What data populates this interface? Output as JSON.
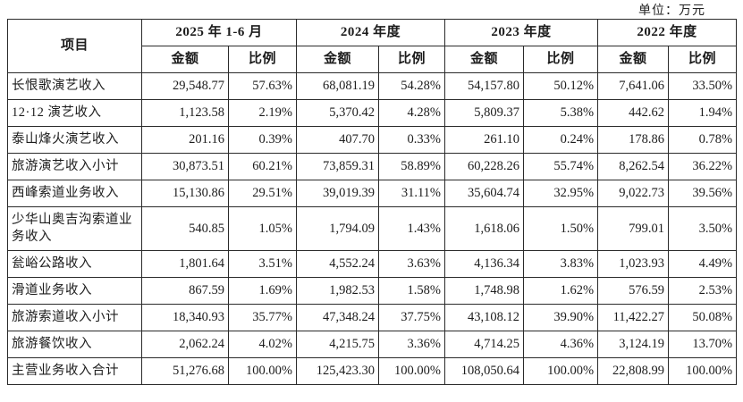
{
  "unit_label": "单位：万元",
  "table": {
    "item_header": "项目",
    "col_groups": [
      {
        "period": "2025 年 1-6 月",
        "amount_label": "金额",
        "ratio_label": "比例"
      },
      {
        "period": "2024 年度",
        "amount_label": "金额",
        "ratio_label": "比例"
      },
      {
        "period": "2023 年度",
        "amount_label": "金额",
        "ratio_label": "比例"
      },
      {
        "period": "2022 年度",
        "amount_label": "金额",
        "ratio_label": "比例"
      }
    ],
    "rows": [
      {
        "label": "长恨歌演艺收入",
        "values": [
          "29,548.77",
          "57.63%",
          "68,081.19",
          "54.28%",
          "54,157.80",
          "50.12%",
          "7,641.06",
          "33.50%"
        ]
      },
      {
        "label": "12·12 演艺收入",
        "values": [
          "1,123.58",
          "2.19%",
          "5,370.42",
          "4.28%",
          "5,809.37",
          "5.38%",
          "442.62",
          "1.94%"
        ]
      },
      {
        "label": "泰山烽火演艺收入",
        "values": [
          "201.16",
          "0.39%",
          "407.70",
          "0.33%",
          "261.10",
          "0.24%",
          "178.86",
          "0.78%"
        ]
      },
      {
        "label": "旅游演艺收入小计",
        "values": [
          "30,873.51",
          "60.21%",
          "73,859.31",
          "58.89%",
          "60,228.26",
          "55.74%",
          "8,262.54",
          "36.22%"
        ]
      },
      {
        "label": "西峰索道业务收入",
        "values": [
          "15,130.86",
          "29.51%",
          "39,019.39",
          "31.11%",
          "35,604.74",
          "32.95%",
          "9,022.73",
          "39.56%"
        ]
      },
      {
        "label": "少华山奥吉沟索道业务收入",
        "values": [
          "540.85",
          "1.05%",
          "1,794.09",
          "1.43%",
          "1,618.06",
          "1.50%",
          "799.01",
          "3.50%"
        ]
      },
      {
        "label": "瓮峪公路收入",
        "values": [
          "1,801.64",
          "3.51%",
          "4,552.24",
          "3.63%",
          "4,136.34",
          "3.83%",
          "1,023.93",
          "4.49%"
        ]
      },
      {
        "label": "滑道业务收入",
        "values": [
          "867.59",
          "1.69%",
          "1,982.53",
          "1.58%",
          "1,748.98",
          "1.62%",
          "576.59",
          "2.53%"
        ]
      },
      {
        "label": "旅游索道收入小计",
        "values": [
          "18,340.93",
          "35.77%",
          "47,348.24",
          "37.75%",
          "43,108.12",
          "39.90%",
          "11,422.27",
          "50.08%"
        ]
      },
      {
        "label": "旅游餐饮收入",
        "values": [
          "2,062.24",
          "4.02%",
          "4,215.75",
          "3.36%",
          "4,714.25",
          "4.36%",
          "3,124.19",
          "13.70%"
        ]
      },
      {
        "label": "主营业务收入合计",
        "values": [
          "51,276.68",
          "100.00%",
          "125,423.30",
          "100.00%",
          "108,050.64",
          "100.00%",
          "22,808.99",
          "100.00%"
        ]
      }
    ]
  }
}
